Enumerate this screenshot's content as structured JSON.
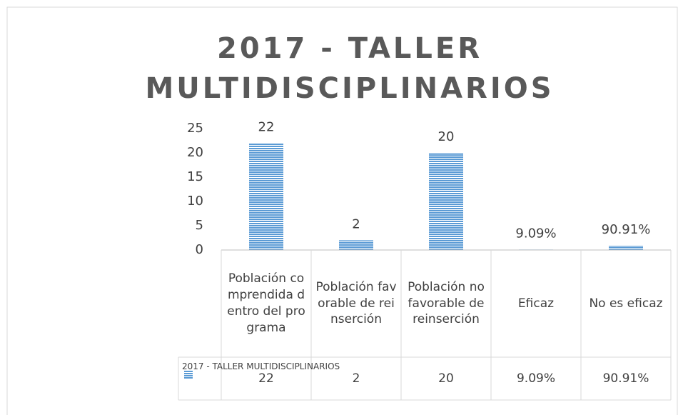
{
  "chart_data": {
    "type": "bar",
    "title": "2017 - TALLER MULTIDISCIPLINARIOS",
    "categories": [
      "Población comprendida dentro del programa",
      "Población favorable de reinserción",
      "Población no favorable de reinserción",
      "Eficaz",
      "No es eficaz"
    ],
    "series": [
      {
        "name": "2017 - TALLER MULTIDISCIPLINARIOS",
        "color": "#5b9bd5",
        "values": [
          22,
          2,
          20,
          0.0909,
          0.9091
        ],
        "value_labels": [
          "22",
          "2",
          "20",
          "9.09%",
          "90.91%"
        ]
      }
    ],
    "ylim": [
      0,
      25
    ],
    "yticks": [
      0,
      5,
      10,
      15,
      20,
      25
    ],
    "grid": false,
    "data_table": true
  }
}
